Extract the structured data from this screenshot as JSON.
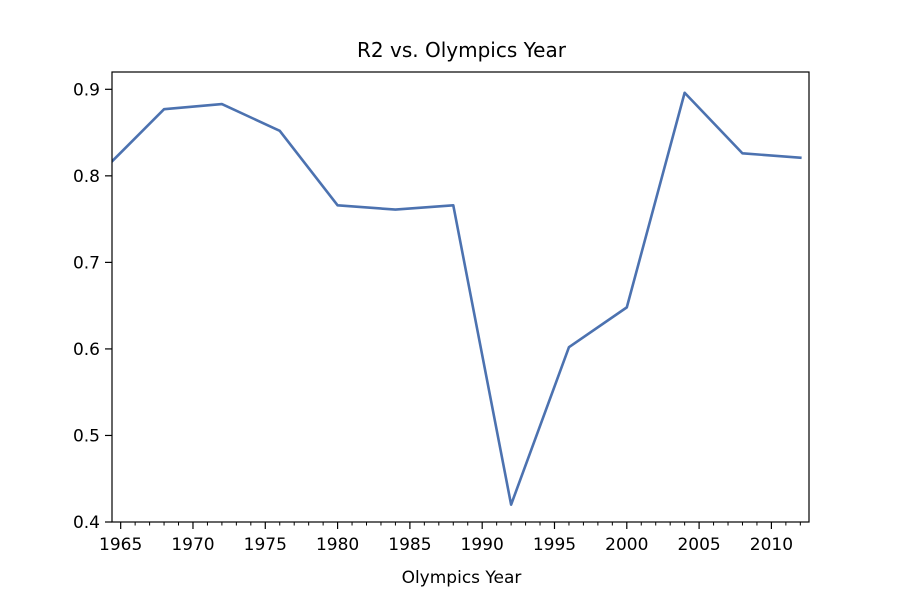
{
  "chart_data": {
    "type": "line",
    "title": "R2 vs. Olympics Year",
    "xlabel": "Olympics Year",
    "ylabel": "",
    "xlim": [
      1964.4,
      2012.6
    ],
    "ylim": [
      0.4,
      0.92
    ],
    "xticks": [
      1965,
      1970,
      1975,
      1980,
      1985,
      1990,
      1995,
      2000,
      2005,
      2010
    ],
    "xtick_labels": [
      "1965",
      "1970",
      "1975",
      "1980",
      "1985",
      "1990",
      "1995",
      "2000",
      "2005",
      "2010"
    ],
    "xminor_step": 1,
    "yticks": [
      0.4,
      0.5,
      0.6,
      0.7,
      0.8,
      0.9
    ],
    "ytick_labels": [
      "0.4",
      "0.5",
      "0.6",
      "0.7",
      "0.8",
      "0.9"
    ],
    "grid": false,
    "series": [
      {
        "color": "#4c72b0",
        "points": [
          [
            1964,
            0.81
          ],
          [
            1968,
            0.877
          ],
          [
            1972,
            0.883
          ],
          [
            1976,
            0.852
          ],
          [
            1980,
            0.766
          ],
          [
            1984,
            0.761
          ],
          [
            1988,
            0.766
          ],
          [
            1992,
            0.42
          ],
          [
            1996,
            0.602
          ],
          [
            2000,
            0.648
          ],
          [
            2004,
            0.896
          ],
          [
            2008,
            0.826
          ],
          [
            2012,
            0.821
          ]
        ]
      }
    ]
  }
}
